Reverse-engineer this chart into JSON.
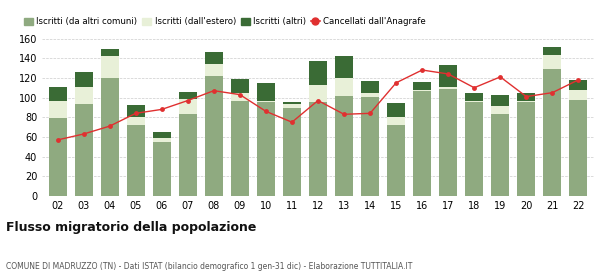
{
  "years": [
    "02",
    "03",
    "04",
    "05",
    "06",
    "07",
    "08",
    "09",
    "10",
    "11",
    "12",
    "13",
    "14",
    "15",
    "16",
    "17",
    "18",
    "19",
    "20",
    "21",
    "22"
  ],
  "iscritti_comuni": [
    79,
    93,
    120,
    72,
    55,
    83,
    122,
    97,
    96,
    89,
    95,
    102,
    101,
    72,
    107,
    109,
    95,
    83,
    95,
    129,
    98
  ],
  "iscritti_estero": [
    18,
    18,
    22,
    8,
    4,
    16,
    12,
    8,
    1,
    4,
    18,
    18,
    4,
    8,
    1,
    2,
    2,
    8,
    2,
    14,
    10
  ],
  "iscritti_altri": [
    14,
    15,
    7,
    12,
    6,
    7,
    12,
    14,
    18,
    2,
    24,
    22,
    12,
    14,
    8,
    22,
    8,
    12,
    8,
    8,
    10
  ],
  "cancellati": [
    57,
    63,
    71,
    84,
    88,
    97,
    107,
    103,
    86,
    75,
    97,
    83,
    84,
    115,
    128,
    124,
    110,
    121,
    101,
    105,
    118
  ],
  "colors": {
    "iscritti_comuni": "#8faa80",
    "iscritti_estero": "#e8f0d8",
    "iscritti_altri": "#3a6b35",
    "cancellati": "#e03030"
  },
  "ylim": [
    0,
    165
  ],
  "yticks": [
    0,
    20,
    40,
    60,
    80,
    100,
    120,
    140,
    160
  ],
  "title": "Flusso migratorio della popolazione",
  "subtitle": "COMUNE DI MADRUZZO (TN) - Dati ISTAT (bilancio demografico 1 gen-31 dic) - Elaborazione TUTTITALIA.IT",
  "legend_labels": [
    "Iscritti (da altri comuni)",
    "Iscritti (dall'estero)",
    "Iscritti (altri)",
    "Cancellati dall'Anagrafe"
  ],
  "bg_color": "#ffffff",
  "grid_color": "#cccccc"
}
